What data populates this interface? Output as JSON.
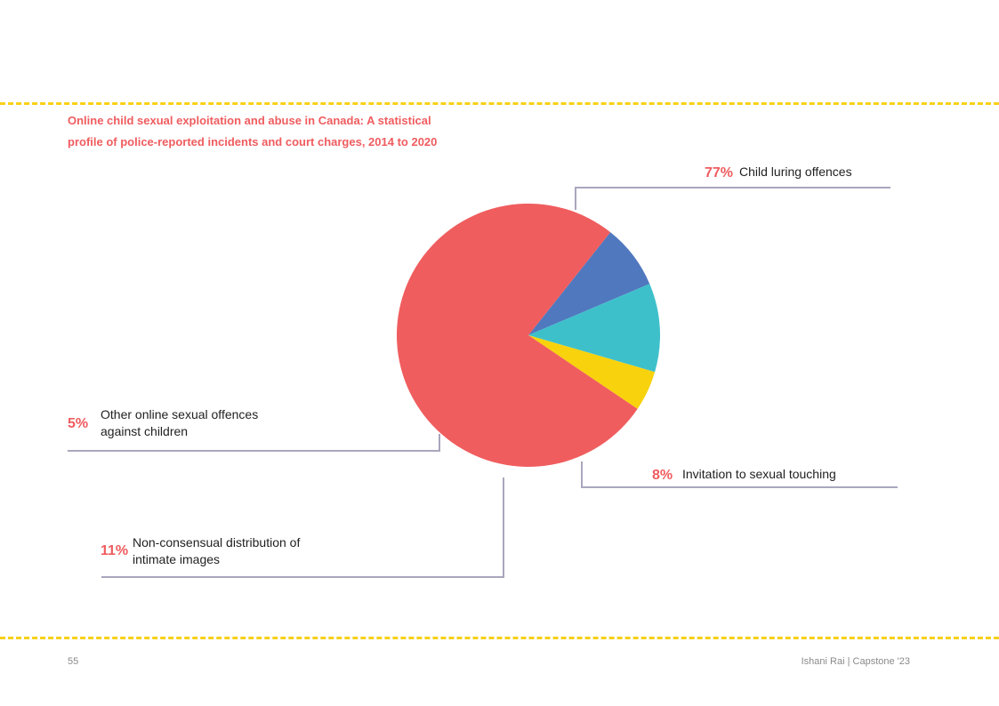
{
  "title_lines": [
    "Online child sexual exploitation and abuse in Canada: A statistical",
    "profile of police-reported incidents and court charges, 2014 to 2020"
  ],
  "chart_data": {
    "type": "pie",
    "title": "Online child sexual exploitation and abuse in Canada: A statistical profile of police-reported incidents and court charges, 2014 to 2020",
    "slices": [
      {
        "label": "Child luring offences",
        "percent": "77%",
        "value": 77,
        "color": "#f05d5e"
      },
      {
        "label": "Invitation to sexual touching",
        "percent": "8%",
        "value": 8,
        "color": "#5078be"
      },
      {
        "label": "Non-consensual distribution of intimate images",
        "percent": "11%",
        "value": 11,
        "color": "#3ec0cb"
      },
      {
        "label": "Other online sexual offences against children",
        "percent": "5%",
        "value": 5,
        "color": "#f8d20d"
      }
    ]
  },
  "labels": {
    "child_luring": {
      "percent": "77%",
      "text": "Child luring offences"
    },
    "invitation": {
      "percent": "8%",
      "text": "Invitation to sexual touching"
    },
    "nonconsensual": {
      "percent": "11%",
      "lines": [
        "Non-consensual distribution of",
        "intimate images"
      ]
    },
    "other": {
      "percent": "5%",
      "lines": [
        "Other online sexual offences",
        "against children"
      ]
    }
  },
  "footer": {
    "page_number": "55",
    "credit": "Ishani Rai | Capstone '23"
  },
  "colors": {
    "accent": "#ef5c5f",
    "dash": "#f7d117",
    "leader": "#a9a6bd"
  }
}
